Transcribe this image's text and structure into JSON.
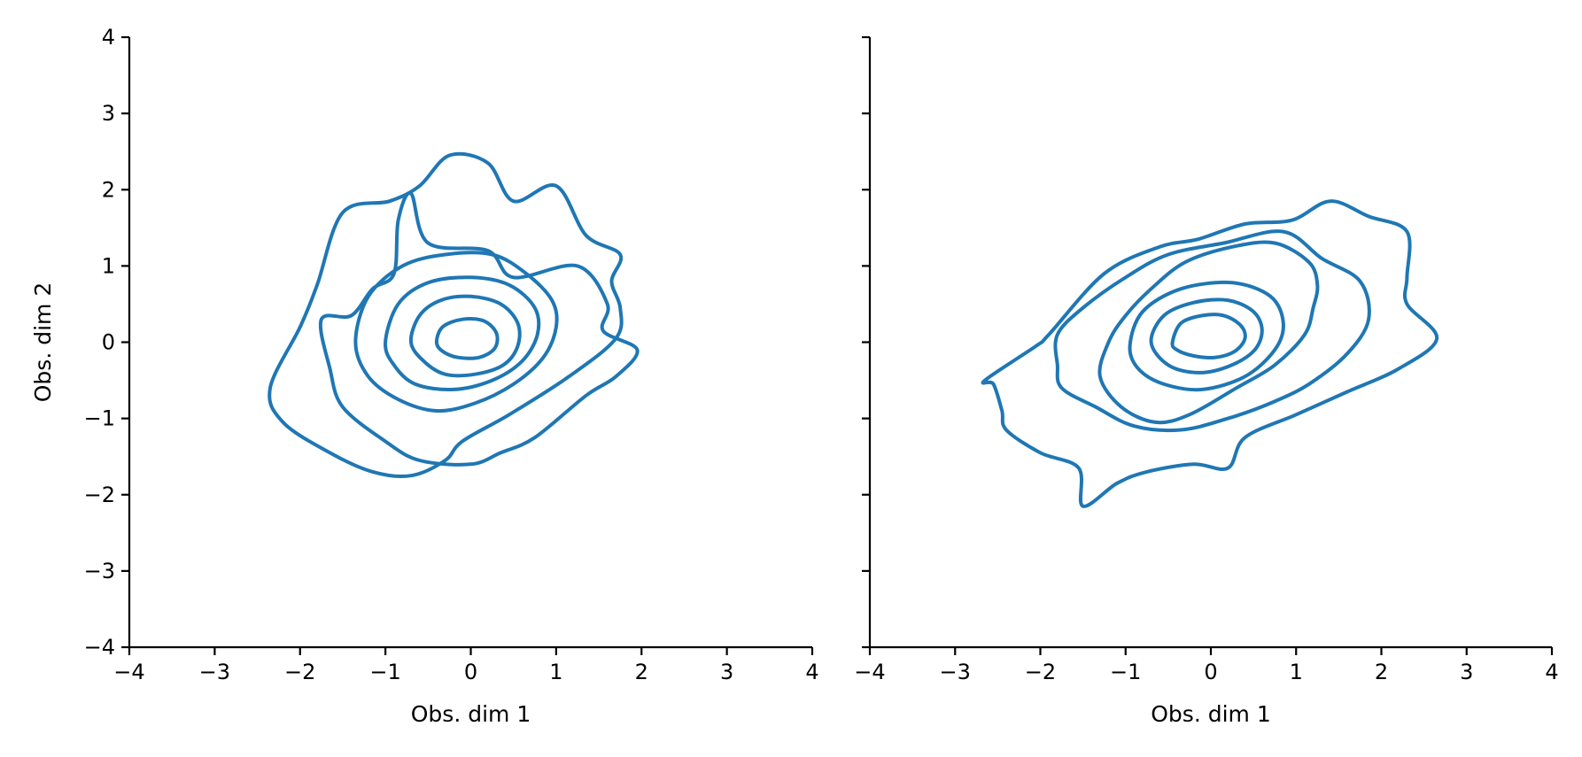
{
  "chart_data": [
    {
      "type": "contour",
      "xlabel": "Obs. dim 1",
      "ylabel": "Obs. dim 2",
      "xlim": [
        -4,
        4
      ],
      "ylim": [
        -4,
        4
      ],
      "xticks": [
        "−4",
        "−3",
        "−2",
        "−1",
        "0",
        "1",
        "2",
        "3",
        "4"
      ],
      "yticks": [
        "−4",
        "−3",
        "−2",
        "−1",
        "0",
        "1",
        "2",
        "3",
        "4"
      ],
      "grid": false,
      "legend": null,
      "color": "#1f77b4",
      "levels": [
        [
          [
            -0.9,
            0.9
          ],
          [
            -0.85,
            1.6
          ],
          [
            -0.7,
            1.95
          ],
          [
            -0.5,
            1.3
          ],
          [
            0.2,
            1.2
          ],
          [
            0.5,
            0.85
          ],
          [
            1.25,
            1.0
          ],
          [
            1.6,
            0.5
          ],
          [
            1.55,
            0.15
          ],
          [
            1.95,
            -0.1
          ],
          [
            1.7,
            -0.45
          ],
          [
            1.35,
            -0.7
          ],
          [
            0.75,
            -1.25
          ],
          [
            0.35,
            -1.45
          ],
          [
            0.0,
            -1.6
          ],
          [
            -0.6,
            -1.55
          ],
          [
            -1.0,
            -1.3
          ],
          [
            -1.5,
            -0.85
          ],
          [
            -1.65,
            -0.35
          ],
          [
            -1.75,
            0.3
          ],
          [
            -1.4,
            0.35
          ],
          [
            -1.15,
            0.7
          ]
        ],
        [
          [
            -1.5,
            1.7
          ],
          [
            -0.95,
            1.85
          ],
          [
            -0.6,
            2.05
          ],
          [
            -0.25,
            2.45
          ],
          [
            0.2,
            2.35
          ],
          [
            0.5,
            1.85
          ],
          [
            1.0,
            2.05
          ],
          [
            1.35,
            1.4
          ],
          [
            1.75,
            1.15
          ],
          [
            1.65,
            0.8
          ],
          [
            1.75,
            0.45
          ],
          [
            1.7,
            0.05
          ],
          [
            1.15,
            -0.45
          ],
          [
            0.45,
            -0.95
          ],
          [
            -0.1,
            -1.3
          ],
          [
            -0.3,
            -1.55
          ],
          [
            -0.7,
            -1.75
          ],
          [
            -1.15,
            -1.7
          ],
          [
            -1.65,
            -1.45
          ],
          [
            -2.2,
            -1.05
          ],
          [
            -2.35,
            -0.6
          ],
          [
            -2.0,
            0.2
          ],
          [
            -1.8,
            0.75
          ]
        ],
        [
          [
            -1.35,
            0.0
          ],
          [
            -1.2,
            0.6
          ],
          [
            -0.8,
            1.0
          ],
          [
            -0.3,
            1.15
          ],
          [
            0.25,
            1.15
          ],
          [
            0.65,
            0.9
          ],
          [
            0.95,
            0.55
          ],
          [
            1.0,
            0.2
          ],
          [
            0.85,
            -0.2
          ],
          [
            0.5,
            -0.55
          ],
          [
            0.05,
            -0.8
          ],
          [
            -0.4,
            -0.9
          ],
          [
            -0.85,
            -0.75
          ],
          [
            -1.2,
            -0.45
          ]
        ],
        [
          [
            -1.0,
            0.0
          ],
          [
            -0.85,
            0.5
          ],
          [
            -0.5,
            0.78
          ],
          [
            0.0,
            0.85
          ],
          [
            0.45,
            0.75
          ],
          [
            0.75,
            0.45
          ],
          [
            0.78,
            0.1
          ],
          [
            0.6,
            -0.25
          ],
          [
            0.25,
            -0.5
          ],
          [
            -0.2,
            -0.62
          ],
          [
            -0.65,
            -0.55
          ],
          [
            -0.9,
            -0.3
          ]
        ],
        [
          [
            -0.7,
            0.0
          ],
          [
            -0.6,
            0.35
          ],
          [
            -0.35,
            0.55
          ],
          [
            0.0,
            0.6
          ],
          [
            0.35,
            0.5
          ],
          [
            0.55,
            0.25
          ],
          [
            0.55,
            -0.05
          ],
          [
            0.38,
            -0.3
          ],
          [
            0.05,
            -0.42
          ],
          [
            -0.3,
            -0.42
          ],
          [
            -0.55,
            -0.25
          ]
        ],
        [
          [
            -0.4,
            0.0
          ],
          [
            -0.33,
            0.2
          ],
          [
            -0.1,
            0.3
          ],
          [
            0.15,
            0.28
          ],
          [
            0.3,
            0.12
          ],
          [
            0.28,
            -0.08
          ],
          [
            0.1,
            -0.2
          ],
          [
            -0.15,
            -0.2
          ],
          [
            -0.33,
            -0.12
          ]
        ]
      ]
    },
    {
      "type": "contour",
      "xlabel": "Obs. dim 1",
      "ylabel": "",
      "xlim": [
        -4,
        4
      ],
      "ylim": [
        -4,
        4
      ],
      "xticks": [
        "−4",
        "−3",
        "−2",
        "−1",
        "0",
        "1",
        "2",
        "3",
        "4"
      ],
      "yticks": [],
      "grid": false,
      "legend": null,
      "color": "#1f77b4",
      "levels": [
        [
          [
            -0.7,
            0.7
          ],
          [
            -0.3,
            1.05
          ],
          [
            0.25,
            1.25
          ],
          [
            0.75,
            1.3
          ],
          [
            1.15,
            1.05
          ],
          [
            1.25,
            0.75
          ],
          [
            1.2,
            0.45
          ],
          [
            1.1,
            0.1
          ],
          [
            0.75,
            -0.3
          ],
          [
            0.3,
            -0.6
          ],
          [
            -0.25,
            -0.95
          ],
          [
            -0.65,
            -1.05
          ],
          [
            -1.05,
            -0.85
          ],
          [
            -1.3,
            -0.45
          ],
          [
            -1.2,
            0.0
          ],
          [
            -1.0,
            0.35
          ]
        ],
        [
          [
            -1.25,
            0.9
          ],
          [
            -0.6,
            1.25
          ],
          [
            -0.15,
            1.35
          ],
          [
            0.4,
            1.55
          ],
          [
            0.95,
            1.6
          ],
          [
            1.4,
            1.85
          ],
          [
            1.85,
            1.65
          ],
          [
            2.3,
            1.45
          ],
          [
            2.3,
            0.85
          ],
          [
            2.3,
            0.5
          ],
          [
            2.65,
            0.05
          ],
          [
            2.2,
            -0.35
          ],
          [
            1.6,
            -0.65
          ],
          [
            1.0,
            -0.95
          ],
          [
            0.4,
            -1.25
          ],
          [
            0.2,
            -1.65
          ],
          [
            -0.2,
            -1.6
          ],
          [
            -0.75,
            -1.7
          ],
          [
            -1.1,
            -1.85
          ],
          [
            -1.5,
            -2.15
          ],
          [
            -1.55,
            -1.65
          ],
          [
            -2.0,
            -1.45
          ],
          [
            -2.4,
            -1.15
          ],
          [
            -2.45,
            -0.9
          ],
          [
            -2.55,
            -0.55
          ],
          [
            -2.65,
            -0.5
          ],
          [
            -2.05,
            -0.05
          ],
          [
            -1.9,
            0.1
          ]
        ],
        [
          [
            -1.8,
            0.1
          ],
          [
            -1.5,
            0.45
          ],
          [
            -1.0,
            0.85
          ],
          [
            -0.5,
            1.15
          ],
          [
            0.15,
            1.3
          ],
          [
            0.85,
            1.45
          ],
          [
            1.3,
            1.1
          ],
          [
            1.75,
            0.8
          ],
          [
            1.85,
            0.3
          ],
          [
            1.6,
            -0.15
          ],
          [
            1.15,
            -0.55
          ],
          [
            0.7,
            -0.8
          ],
          [
            0.2,
            -1.0
          ],
          [
            -0.35,
            -1.15
          ],
          [
            -0.9,
            -1.1
          ],
          [
            -1.35,
            -0.85
          ],
          [
            -1.75,
            -0.6
          ],
          [
            -1.8,
            -0.3
          ]
        ],
        [
          [
            -0.45,
            0.0
          ],
          [
            -0.35,
            0.25
          ],
          [
            -0.1,
            0.35
          ],
          [
            0.15,
            0.35
          ],
          [
            0.35,
            0.22
          ],
          [
            0.4,
            0.05
          ],
          [
            0.28,
            -0.12
          ],
          [
            0.05,
            -0.2
          ],
          [
            -0.2,
            -0.18
          ],
          [
            -0.4,
            -0.1
          ]
        ],
        [
          [
            -0.7,
            0.0
          ],
          [
            -0.55,
            0.35
          ],
          [
            -0.2,
            0.52
          ],
          [
            0.2,
            0.55
          ],
          [
            0.5,
            0.4
          ],
          [
            0.6,
            0.15
          ],
          [
            0.5,
            -0.12
          ],
          [
            0.2,
            -0.32
          ],
          [
            -0.15,
            -0.4
          ],
          [
            -0.5,
            -0.3
          ]
        ],
        [
          [
            -0.95,
            -0.05
          ],
          [
            -0.8,
            0.4
          ],
          [
            -0.35,
            0.7
          ],
          [
            0.25,
            0.78
          ],
          [
            0.7,
            0.6
          ],
          [
            0.85,
            0.25
          ],
          [
            0.75,
            -0.1
          ],
          [
            0.4,
            -0.45
          ],
          [
            -0.1,
            -0.62
          ],
          [
            -0.55,
            -0.55
          ],
          [
            -0.85,
            -0.35
          ]
        ]
      ]
    }
  ]
}
